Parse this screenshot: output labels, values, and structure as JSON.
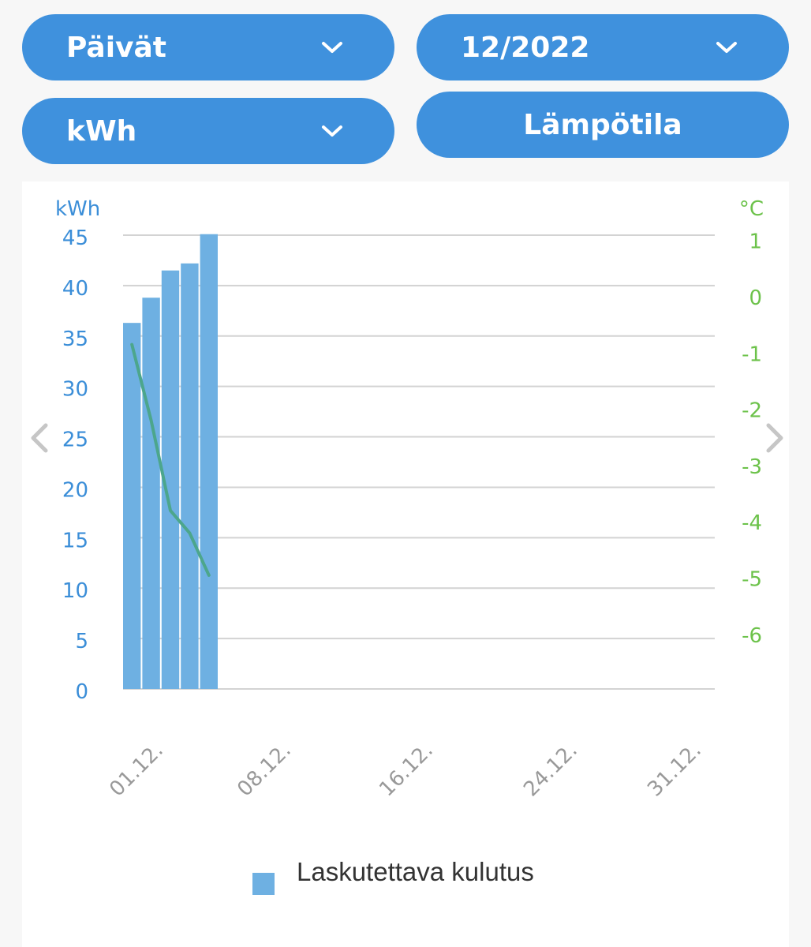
{
  "controls": {
    "period": {
      "label": "Päivät",
      "icon": "chevron-down-icon"
    },
    "month": {
      "label": "12/2022",
      "icon": "chevron-down-icon"
    },
    "unit": {
      "label": "kWh",
      "icon": "chevron-down-icon"
    },
    "temperature_button": {
      "label": "Lämpötila"
    }
  },
  "navigation": {
    "prev_icon": "chevron-left-icon",
    "next_icon": "chevron-right-icon"
  },
  "colors": {
    "accent": "#3f91dd",
    "bar": "#6eb0e2",
    "temperature_line": "#4ca68c",
    "left_axis": "#3b8ed8",
    "right_axis": "#6cc24a",
    "grid": "#d3d3d3"
  },
  "chart_data": {
    "type": "bar",
    "y_left": {
      "label": "kWh",
      "ylim": [
        0,
        45
      ],
      "ticks": [
        "0",
        "5",
        "10",
        "15",
        "20",
        "25",
        "30",
        "35",
        "40",
        "45"
      ]
    },
    "y_right": {
      "label": "°C",
      "ticks": [
        "1",
        "0",
        "-1",
        "-2",
        "-3",
        "-4",
        "-5",
        "-6"
      ],
      "tick_values": [
        1,
        0,
        -1,
        -2,
        -3,
        -4,
        -5,
        -6
      ]
    },
    "x_ticks": [
      "01.12.",
      "08.12.",
      "16.12.",
      "24.12.",
      "31.12."
    ],
    "x_tick_days": [
      1,
      8,
      16,
      24,
      31
    ],
    "days_in_month": 31,
    "series": [
      {
        "name": "Laskutettava kulutus",
        "type": "bar",
        "days": [
          1,
          2,
          3,
          4,
          5
        ],
        "values": [
          36.3,
          38.8,
          41.5,
          42.2,
          45.1
        ]
      },
      {
        "type": "line",
        "axis": "right",
        "days": [
          1,
          2,
          3,
          4,
          5
        ],
        "values": [
          -0.85,
          -2.2,
          -3.8,
          -4.2,
          -4.95
        ]
      }
    ],
    "grid": true,
    "legend": "bottom-center"
  }
}
